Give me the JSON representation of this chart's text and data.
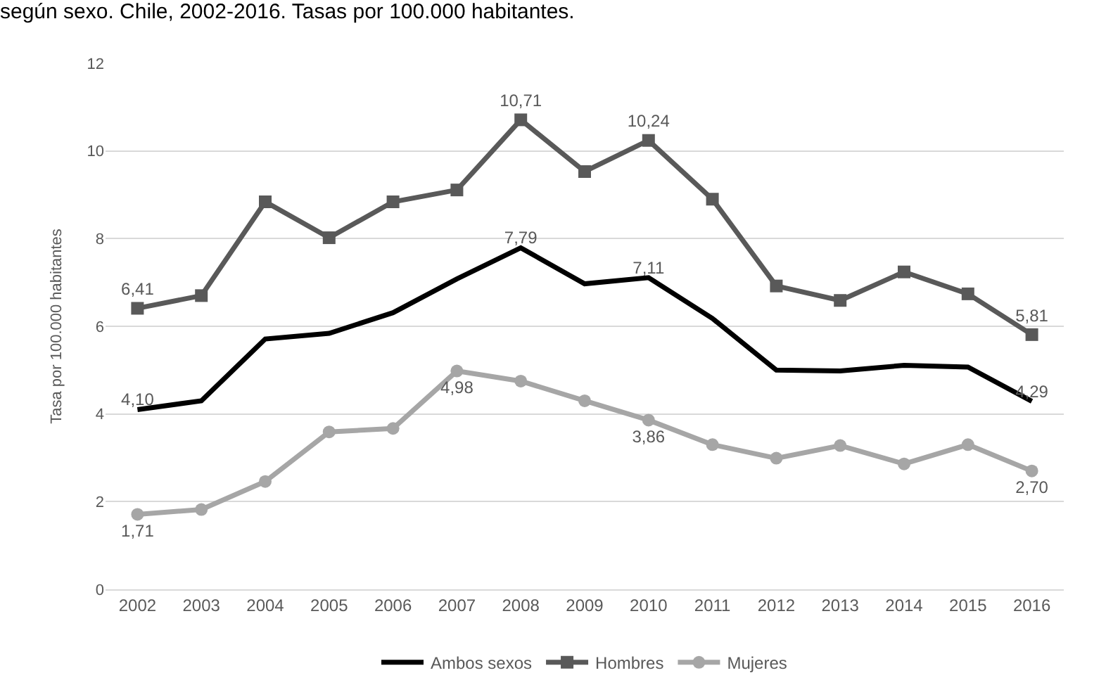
{
  "chart_data": {
    "type": "line",
    "title": "según sexo. Chile, 2002-2016. Tasas por 100.000 habitantes.",
    "ylabel": "Tasa por 100.000 habitantes",
    "categories": [
      "2002",
      "2003",
      "2004",
      "2005",
      "2006",
      "2007",
      "2008",
      "2009",
      "2010",
      "2011",
      "2012",
      "2013",
      "2014",
      "2015",
      "2016"
    ],
    "series": [
      {
        "name": "Ambos sexos",
        "color": "#000000",
        "marker": "none",
        "values": [
          4.1,
          4.3,
          5.71,
          5.84,
          6.31,
          7.08,
          7.79,
          6.97,
          7.11,
          6.18,
          5.0,
          4.98,
          5.11,
          5.07,
          4.29
        ],
        "value_labels": [
          "4,10",
          null,
          null,
          null,
          null,
          null,
          "7,79",
          null,
          "7,11",
          null,
          null,
          null,
          null,
          null,
          "4,29"
        ]
      },
      {
        "name": "Hombres",
        "color": "#595959",
        "marker": "square",
        "values": [
          6.41,
          6.7,
          8.84,
          8.02,
          8.84,
          9.11,
          10.71,
          9.53,
          10.24,
          8.9,
          6.92,
          6.59,
          7.24,
          6.74,
          5.81
        ],
        "value_labels": [
          "6,41",
          null,
          null,
          null,
          null,
          null,
          "10,71",
          null,
          "10,24",
          null,
          null,
          null,
          null,
          null,
          "5,81"
        ]
      },
      {
        "name": "Mujeres",
        "color": "#a6a6a6",
        "marker": "circle",
        "values": [
          1.71,
          1.82,
          2.46,
          3.59,
          3.67,
          4.98,
          4.75,
          4.3,
          3.86,
          3.3,
          2.99,
          3.28,
          2.86,
          3.3,
          2.7
        ],
        "value_labels": [
          "1,71",
          null,
          null,
          null,
          null,
          "4,98",
          null,
          null,
          "3,86",
          null,
          null,
          null,
          null,
          null,
          "2,70"
        ]
      }
    ],
    "ylim": [
      0,
      12
    ],
    "yticks": [
      0,
      2,
      4,
      6,
      8,
      10,
      12
    ],
    "grid": "y",
    "legend": "bottom"
  }
}
